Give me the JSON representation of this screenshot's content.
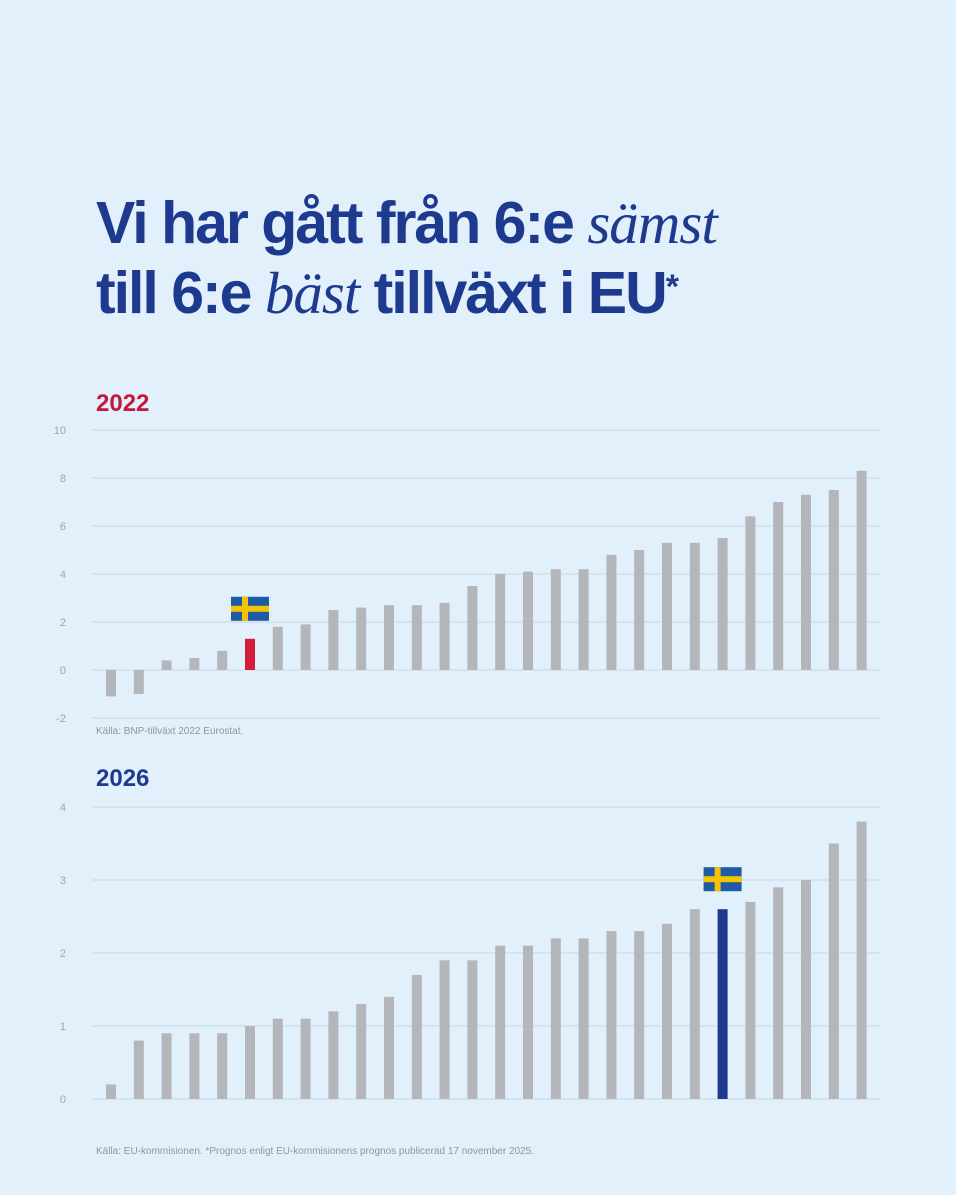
{
  "headline": {
    "part1": "Vi har gått från 6:e ",
    "part2_italic": "sämst",
    "part3": "till 6:e ",
    "part4_italic": "bäst",
    "part5": " tillväxt i EU",
    "asterisk": "*"
  },
  "colors": {
    "background": "#e1f0fa",
    "headline": "#1e3a8f",
    "bar_default": "#b4b6bc",
    "bar_sweden_2022": "#d21e3c",
    "bar_sweden_2026": "#1e3a8f",
    "year_2022": "#c8173c",
    "year_2026": "#1e3a8f"
  },
  "charts": [
    {
      "year_label": "2022",
      "source": "Källa: BNP-tillväxt 2022 Eurostat.",
      "flag_icon": "sweden-flag-icon"
    },
    {
      "year_label": "2026",
      "source": "Källa: EU-kommisionen. *Prognos enligt EU-kommisionens prognos publicerad 17 november 2025.",
      "flag_icon": "sweden-flag-icon"
    }
  ],
  "chart_data": [
    {
      "type": "bar",
      "title": "2022",
      "ylim": [
        -2,
        10
      ],
      "yticks": [
        -2,
        0,
        2,
        4,
        6,
        8,
        10
      ],
      "grid": true,
      "highlight_index": 5,
      "values": [
        -1.1,
        -1.0,
        0.4,
        0.5,
        0.8,
        1.3,
        1.8,
        1.9,
        2.5,
        2.6,
        2.7,
        2.7,
        2.8,
        3.5,
        4.0,
        4.1,
        4.2,
        4.2,
        4.8,
        5.0,
        5.3,
        5.3,
        5.5,
        6.4,
        7.0,
        7.3,
        7.5,
        8.3
      ]
    },
    {
      "type": "bar",
      "title": "2026",
      "ylim": [
        0,
        4
      ],
      "yticks": [
        0,
        1,
        2,
        3,
        4
      ],
      "grid": true,
      "highlight_index": 22,
      "values": [
        0.2,
        0.8,
        0.9,
        0.9,
        0.9,
        1.0,
        1.1,
        1.1,
        1.2,
        1.3,
        1.4,
        1.7,
        1.9,
        1.9,
        2.1,
        2.1,
        2.2,
        2.2,
        2.3,
        2.3,
        2.4,
        2.6,
        2.6,
        2.7,
        2.9,
        3.0,
        3.5,
        3.8
      ]
    }
  ]
}
